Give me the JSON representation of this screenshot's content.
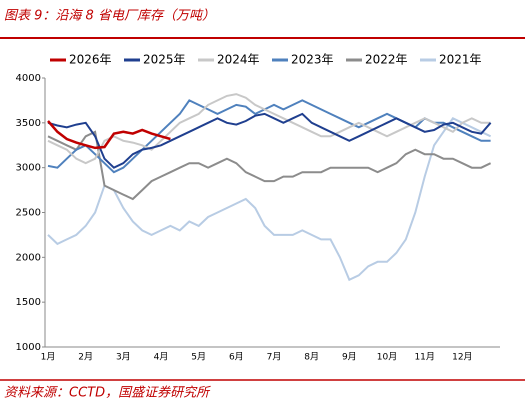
{
  "header": {
    "title": "图表 9：沿海 8 省电厂库存（万吨）"
  },
  "chart_data": {
    "type": "line",
    "categories": [
      "1月",
      null,
      null,
      null,
      "2月",
      null,
      null,
      null,
      "3月",
      null,
      null,
      null,
      "4月",
      null,
      null,
      null,
      "5月",
      null,
      null,
      null,
      "6月",
      null,
      null,
      null,
      "7月",
      null,
      null,
      null,
      "8月",
      null,
      null,
      null,
      "9月",
      null,
      null,
      null,
      "10月",
      null,
      null,
      null,
      "11月",
      null,
      null,
      null,
      "12月",
      null,
      null,
      null
    ],
    "ylim": [
      1000,
      4000
    ],
    "yticks": [
      1000,
      1500,
      2000,
      2500,
      3000,
      3500,
      4000
    ],
    "grid": false,
    "legend": "top",
    "series": [
      {
        "name": "2026年",
        "color": "#c00000",
        "values": [
          3520,
          3400,
          3320,
          3280,
          3250,
          3220,
          3230,
          3380,
          3400,
          3380,
          3420,
          3380,
          3350,
          3320,
          null,
          null,
          null,
          null,
          null,
          null,
          null,
          null,
          null,
          null,
          null,
          null,
          null,
          null,
          null,
          null,
          null,
          null,
          null,
          null,
          null,
          null,
          null,
          null,
          null,
          null,
          null,
          null,
          null,
          null,
          null,
          null,
          null,
          null
        ]
      },
      {
        "name": "2025年",
        "color": "#1f3f8f",
        "values": [
          3500,
          3470,
          3450,
          3480,
          3500,
          3350,
          3100,
          3000,
          3050,
          3150,
          3200,
          3220,
          3250,
          3300,
          3350,
          3400,
          3450,
          3500,
          3550,
          3500,
          3480,
          3520,
          3580,
          3600,
          3550,
          3500,
          3550,
          3600,
          3500,
          3450,
          3400,
          3350,
          3300,
          3350,
          3400,
          3450,
          3500,
          3550,
          3500,
          3450,
          3400,
          3420,
          3480,
          3500,
          3450,
          3400,
          3380,
          3500
        ]
      },
      {
        "name": "2024年",
        "color": "#c8c8c8",
        "values": [
          3300,
          3250,
          3200,
          3100,
          3050,
          3100,
          3300,
          3350,
          3300,
          3280,
          3250,
          3200,
          3300,
          3400,
          3500,
          3550,
          3600,
          3700,
          3750,
          3800,
          3820,
          3780,
          3700,
          3650,
          3600,
          3550,
          3500,
          3450,
          3400,
          3350,
          3350,
          3400,
          3450,
          3500,
          3450,
          3400,
          3350,
          3400,
          3450,
          3500,
          3550,
          3500,
          3450,
          3400,
          3500,
          3550,
          3500,
          3500
        ]
      },
      {
        "name": "2023年",
        "color": "#4f81bd",
        "values": [
          3020,
          3000,
          3100,
          3200,
          3250,
          3150,
          3050,
          2950,
          3000,
          3100,
          3200,
          3300,
          3400,
          3500,
          3600,
          3750,
          3700,
          3650,
          3600,
          3650,
          3700,
          3680,
          3600,
          3650,
          3700,
          3650,
          3700,
          3750,
          3700,
          3650,
          3600,
          3550,
          3500,
          3450,
          3500,
          3550,
          3600,
          3550,
          3500,
          3450,
          3550,
          3500,
          3500,
          3450,
          3400,
          3350,
          3300,
          3300
        ]
      },
      {
        "name": "2022年",
        "color": "#8c8c8c",
        "values": [
          3350,
          3300,
          3250,
          3200,
          3350,
          3400,
          2800,
          2750,
          2700,
          2650,
          2750,
          2850,
          2900,
          2950,
          3000,
          3050,
          3050,
          3000,
          3050,
          3100,
          3050,
          2950,
          2900,
          2850,
          2850,
          2900,
          2900,
          2950,
          2950,
          2950,
          3000,
          3000,
          3000,
          3000,
          3000,
          2950,
          3000,
          3050,
          3150,
          3200,
          3150,
          3150,
          3100,
          3100,
          3050,
          3000,
          3000,
          3050
        ]
      },
      {
        "name": "2021年",
        "color": "#b8cce4",
        "values": [
          2250,
          2150,
          2200,
          2250,
          2350,
          2500,
          2800,
          2750,
          2550,
          2400,
          2300,
          2250,
          2300,
          2350,
          2300,
          2400,
          2350,
          2450,
          2500,
          2550,
          2600,
          2650,
          2550,
          2350,
          2250,
          2250,
          2250,
          2300,
          2250,
          2200,
          2200,
          2000,
          1750,
          1800,
          1900,
          1950,
          1950,
          2050,
          2200,
          2500,
          2900,
          3250,
          3400,
          3550,
          3500,
          3450,
          3400,
          3350
        ]
      }
    ]
  },
  "footer": {
    "source": "资料来源：CCTD，国盛证券研究所"
  }
}
